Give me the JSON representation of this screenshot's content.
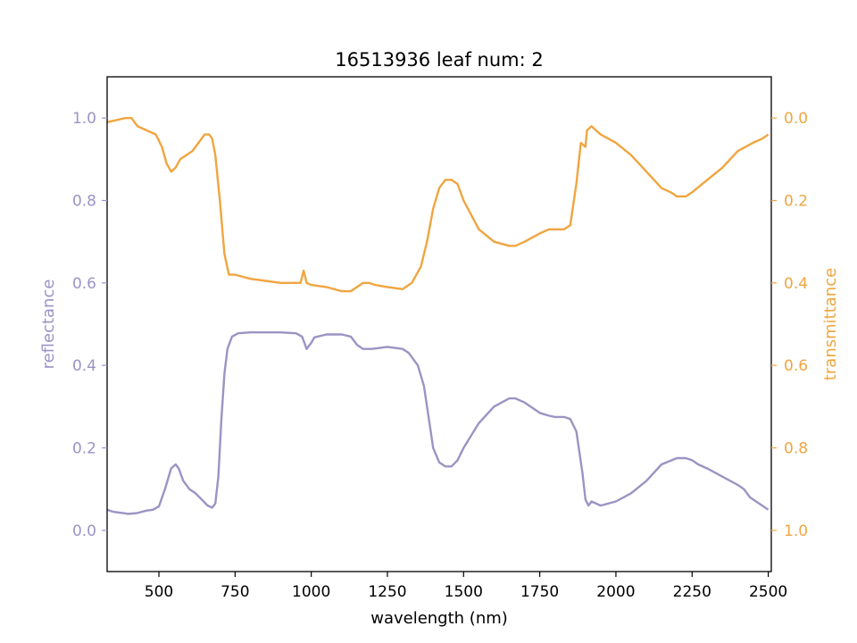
{
  "chart_data": {
    "type": "line",
    "title": "16513936 leaf num: 2",
    "xlabel": "wavelength (nm)",
    "xlim": [
      330,
      2510
    ],
    "grid": false,
    "x_ticks": [
      500,
      750,
      1000,
      1250,
      1500,
      1750,
      2000,
      2250,
      2500
    ],
    "left_axis": {
      "label": "reflectance",
      "color": "#9a94c4",
      "ylim": [
        -0.1,
        1.1
      ],
      "ticks": [
        0.0,
        0.2,
        0.4,
        0.6,
        0.8,
        1.0
      ],
      "tick_labels": [
        "0.0",
        "0.2",
        "0.4",
        "0.6",
        "0.8",
        "1.0"
      ]
    },
    "right_axis": {
      "label": "transmittance",
      "color": "#f0a540",
      "ylim": [
        1.1,
        -0.1
      ],
      "inverted": true,
      "ticks": [
        0.0,
        0.2,
        0.4,
        0.6,
        0.8,
        1.0
      ],
      "tick_labels": [
        "0.0",
        "0.2",
        "0.4",
        "0.6",
        "0.8",
        "1.0"
      ]
    },
    "series": [
      {
        "axis": "left",
        "color": "#9a94c4",
        "x": [
          330,
          350,
          380,
          400,
          430,
          460,
          480,
          500,
          520,
          540,
          555,
          565,
          580,
          600,
          620,
          640,
          660,
          675,
          685,
          695,
          705,
          715,
          725,
          740,
          760,
          800,
          850,
          900,
          950,
          970,
          985,
          1000,
          1010,
          1050,
          1100,
          1130,
          1150,
          1170,
          1200,
          1250,
          1300,
          1320,
          1350,
          1370,
          1390,
          1400,
          1420,
          1440,
          1460,
          1480,
          1500,
          1550,
          1600,
          1650,
          1670,
          1700,
          1750,
          1780,
          1800,
          1830,
          1850,
          1870,
          1890,
          1900,
          1910,
          1920,
          1950,
          2000,
          2050,
          2100,
          2150,
          2200,
          2230,
          2250,
          2270,
          2300,
          2350,
          2400,
          2420,
          2440,
          2460,
          2480,
          2500
        ],
        "y": [
          0.05,
          0.045,
          0.042,
          0.04,
          0.042,
          0.048,
          0.05,
          0.058,
          0.1,
          0.15,
          0.16,
          0.15,
          0.12,
          0.1,
          0.09,
          0.075,
          0.06,
          0.055,
          0.065,
          0.13,
          0.27,
          0.38,
          0.44,
          0.47,
          0.478,
          0.48,
          0.48,
          0.48,
          0.478,
          0.47,
          0.44,
          0.455,
          0.468,
          0.475,
          0.475,
          0.47,
          0.45,
          0.44,
          0.44,
          0.445,
          0.44,
          0.43,
          0.4,
          0.35,
          0.25,
          0.2,
          0.165,
          0.155,
          0.155,
          0.17,
          0.2,
          0.26,
          0.3,
          0.32,
          0.32,
          0.31,
          0.285,
          0.278,
          0.275,
          0.275,
          0.27,
          0.24,
          0.14,
          0.075,
          0.06,
          0.07,
          0.06,
          0.07,
          0.09,
          0.12,
          0.16,
          0.175,
          0.175,
          0.17,
          0.16,
          0.15,
          0.13,
          0.11,
          0.1,
          0.08,
          0.07,
          0.06,
          0.05
        ]
      },
      {
        "axis": "right",
        "color": "#f0a540",
        "x": [
          330,
          360,
          390,
          410,
          430,
          460,
          490,
          510,
          525,
          540,
          555,
          570,
          590,
          610,
          630,
          650,
          665,
          675,
          685,
          700,
          715,
          730,
          750,
          800,
          850,
          900,
          950,
          965,
          975,
          985,
          1000,
          1050,
          1100,
          1130,
          1150,
          1170,
          1190,
          1210,
          1250,
          1300,
          1330,
          1360,
          1380,
          1400,
          1420,
          1440,
          1460,
          1480,
          1500,
          1550,
          1600,
          1650,
          1670,
          1700,
          1750,
          1780,
          1800,
          1830,
          1850,
          1870,
          1885,
          1900,
          1905,
          1920,
          1950,
          2000,
          2050,
          2100,
          2150,
          2180,
          2200,
          2230,
          2250,
          2300,
          2350,
          2400,
          2450,
          2480,
          2500
        ],
        "y": [
          0.01,
          0.005,
          0.0,
          0.0,
          0.02,
          0.03,
          0.04,
          0.07,
          0.11,
          0.13,
          0.12,
          0.1,
          0.09,
          0.08,
          0.06,
          0.04,
          0.04,
          0.05,
          0.09,
          0.2,
          0.33,
          0.38,
          0.38,
          0.39,
          0.395,
          0.4,
          0.4,
          0.4,
          0.37,
          0.4,
          0.405,
          0.41,
          0.42,
          0.42,
          0.41,
          0.4,
          0.4,
          0.405,
          0.41,
          0.415,
          0.4,
          0.36,
          0.3,
          0.22,
          0.17,
          0.15,
          0.15,
          0.16,
          0.2,
          0.27,
          0.3,
          0.31,
          0.31,
          0.3,
          0.28,
          0.27,
          0.27,
          0.27,
          0.26,
          0.16,
          0.06,
          0.07,
          0.03,
          0.02,
          0.04,
          0.06,
          0.09,
          0.13,
          0.17,
          0.18,
          0.19,
          0.19,
          0.18,
          0.15,
          0.12,
          0.08,
          0.06,
          0.05,
          0.04
        ]
      }
    ]
  }
}
